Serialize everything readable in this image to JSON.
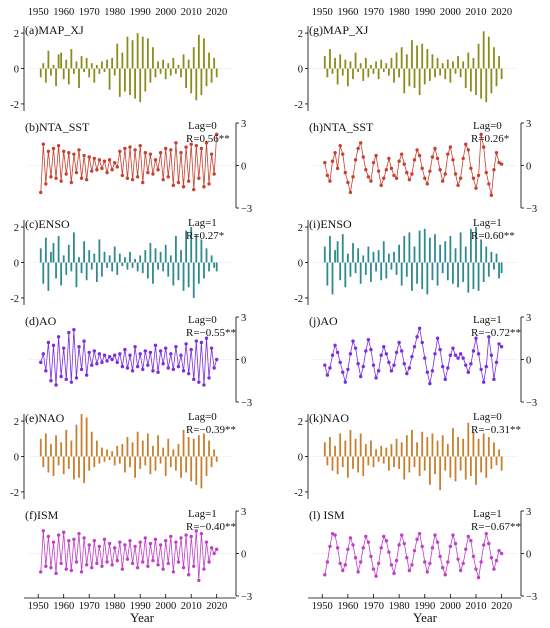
{
  "figure": {
    "x_ticks": [
      1950,
      1960,
      1970,
      1980,
      1990,
      2000,
      2010,
      2020
    ],
    "xlabel": "Year",
    "y_ticks_left": [
      "2",
      "0",
      "-2"
    ],
    "y_ticks_right": [
      "3",
      "0",
      "−3"
    ]
  },
  "chart_data": [
    {
      "id": "a",
      "label": "(a)MAP_XJ",
      "type": "bar",
      "color": "#8b8c1c",
      "axis": "left",
      "ylim": [
        -2.4,
        2.4
      ],
      "lag": "",
      "r": "",
      "x_start": 1951,
      "values": [
        -0.5,
        0.3,
        -0.8,
        1.0,
        -0.4,
        0.2,
        -1.0,
        0.8,
        0.9,
        -0.6,
        0.5,
        -0.9,
        1.1,
        -0.3,
        0.4,
        -1.1,
        0.7,
        -0.2,
        0.6,
        -0.5,
        0.3,
        -0.8,
        0.2,
        -0.3,
        0.4,
        -0.2,
        0.5,
        -1.2,
        0.6,
        -0.4,
        1.4,
        -1.6,
        0.9,
        -1.3,
        1.8,
        -1.5,
        1.6,
        -1.7,
        2.0,
        -1.9,
        1.8,
        -1.3,
        1.7,
        -0.8,
        1.2,
        -0.5,
        0.4,
        -0.3,
        0.5,
        -0.6,
        0.3,
        -0.4,
        0.6,
        -0.3,
        0.2,
        -0.5,
        0.8,
        -1.1,
        0.5,
        -1.4,
        1.2,
        -1.8,
        1.9,
        -1.5,
        1.7,
        -1.0,
        0.9,
        -0.8,
        0.6,
        -0.5
      ]
    },
    {
      "id": "b",
      "label": "(b)NTA_SST",
      "type": "line",
      "color": "#c84030",
      "axis": "right",
      "ylim": [
        -3,
        3
      ],
      "lag": "Lag=0",
      "r": "R=0.56**",
      "x_start": 1951,
      "values": [
        -1.9,
        1.5,
        -1.3,
        1.0,
        -0.8,
        1.2,
        -0.9,
        1.4,
        -1.1,
        1.0,
        -0.6,
        0.9,
        -1.2,
        0.8,
        -0.5,
        1.1,
        -0.9,
        0.7,
        -1.0,
        0.6,
        -0.4,
        0.5,
        -0.3,
        0.4,
        -0.2,
        0.3,
        -0.5,
        0.4,
        -0.3,
        0.2,
        -0.1,
        1.0,
        -0.7,
        1.2,
        -0.9,
        1.3,
        -1.0,
        1.1,
        -0.8,
        1.4,
        -1.2,
        0.9,
        -0.5,
        0.8,
        -0.6,
        0.4,
        -0.3,
        0.9,
        -1.0,
        1.2,
        -0.8,
        1.1,
        -1.4,
        1.6,
        -1.2,
        0.9,
        -1.5,
        1.3,
        -1.1,
        1.5,
        -1.7,
        1.4,
        -0.9,
        1.2,
        -1.5,
        1.6,
        -1.3,
        0.8,
        -0.6,
        2.2
      ]
    },
    {
      "id": "c",
      "label": "(c)ENSO",
      "type": "bar",
      "color": "#2e8a8e",
      "axis": "left",
      "ylim": [
        -2.4,
        2.4
      ],
      "lag": "Lag=1",
      "r": "R=0.27*",
      "x_start": 1951,
      "values": [
        0.8,
        -1.2,
        1.4,
        -1.6,
        0.6,
        1.1,
        -0.9,
        1.5,
        -1.3,
        0.4,
        -0.7,
        1.0,
        -0.5,
        1.7,
        -1.4,
        0.3,
        -0.6,
        1.2,
        -1.0,
        0.7,
        -0.4,
        0.5,
        -1.1,
        1.3,
        -0.8,
        0.6,
        -0.3,
        0.4,
        -0.5,
        0.9,
        -0.7,
        0.5,
        -0.2,
        0.3,
        -0.4,
        0.6,
        -0.3,
        0.2,
        -0.5,
        0.4,
        -0.6,
        0.7,
        -0.9,
        1.1,
        -1.2,
        0.8,
        -0.4,
        0.6,
        -0.5,
        1.0,
        -0.8,
        0.4,
        -1.3,
        1.5,
        -1.0,
        0.7,
        -1.6,
        1.8,
        -1.4,
        2.0,
        -2.0,
        1.6,
        -1.2,
        1.3,
        -0.9,
        0.8,
        -0.5,
        0.4,
        -0.3,
        -0.5
      ]
    },
    {
      "id": "d",
      "label": "(d)AO",
      "type": "line",
      "color": "#7b2ee0",
      "axis": "right",
      "ylim": [
        -3,
        3
      ],
      "lag": "Lag=0",
      "r": "R=−0.55**",
      "x_start": 1951,
      "values": [
        -0.2,
        0.4,
        -0.8,
        1.2,
        -1.5,
        1.0,
        -1.8,
        1.6,
        -1.2,
        0.8,
        -1.4,
        1.9,
        -1.6,
        2.1,
        -1.3,
        0.9,
        -0.7,
        1.3,
        -1.1,
        0.5,
        -0.4,
        0.6,
        -0.3,
        0.4,
        -0.2,
        0.3,
        -0.1,
        0.2,
        0.0,
        0.3,
        -0.2,
        0.4,
        -0.5,
        0.7,
        -0.6,
        0.3,
        -0.8,
        0.9,
        -0.5,
        0.4,
        -0.7,
        0.6,
        -0.4,
        0.5,
        -0.8,
        1.0,
        -0.9,
        0.6,
        -0.3,
        0.8,
        -0.6,
        0.4,
        -0.7,
        0.9,
        -0.5,
        0.3,
        -0.8,
        1.1,
        -1.0,
        0.7,
        -1.4,
        1.3,
        -1.6,
        1.2,
        -1.8,
        1.5,
        -1.3,
        0.8,
        -0.6,
        0.0
      ]
    },
    {
      "id": "e",
      "label": "(e)NAO",
      "type": "bar",
      "color": "#c8802e",
      "axis": "left",
      "ylim": [
        -2.4,
        2.4
      ],
      "lag": "Lag=0",
      "r": "R=−0.39**",
      "x_start": 1951,
      "values": [
        1.0,
        -0.6,
        1.3,
        -0.9,
        0.7,
        -1.1,
        1.2,
        -0.5,
        0.8,
        -1.0,
        1.5,
        -0.7,
        0.9,
        -1.3,
        1.8,
        -1.2,
        2.4,
        -1.5,
        2.2,
        -0.8,
        1.4,
        -0.6,
        0.9,
        -0.4,
        0.5,
        -0.3,
        0.4,
        -0.2,
        0.3,
        -0.5,
        0.6,
        -0.4,
        0.7,
        -0.9,
        1.1,
        -0.6,
        0.8,
        -1.2,
        1.4,
        -0.7,
        0.9,
        -0.5,
        1.3,
        -1.0,
        0.6,
        -0.8,
        1.2,
        -0.4,
        0.5,
        -1.1,
        1.0,
        -0.6,
        0.4,
        -0.8,
        0.7,
        -1.2,
        1.5,
        -0.9,
        1.1,
        -1.4,
        1.0,
        -1.6,
        1.2,
        -1.8,
        1.3,
        -1.1,
        0.9,
        -0.6,
        0.4,
        -0.3
      ]
    },
    {
      "id": "f",
      "label": "(f)ISM",
      "type": "line",
      "color": "#c040c8",
      "axis": "right",
      "ylim": [
        -3,
        3
      ],
      "lag": "Lag=1",
      "r": "R=−0.40**",
      "x_start": 1951,
      "values": [
        -1.3,
        1.6,
        -0.9,
        1.2,
        -1.0,
        0.8,
        -1.4,
        1.3,
        -0.7,
        1.5,
        -1.1,
        0.9,
        -1.2,
        1.0,
        -0.6,
        1.4,
        -1.3,
        1.1,
        -0.8,
        0.6,
        -1.0,
        0.9,
        -0.7,
        0.5,
        -0.9,
        1.0,
        -0.6,
        0.7,
        -0.8,
        0.4,
        -0.5,
        0.8,
        -1.1,
        0.6,
        -0.4,
        0.9,
        -0.7,
        0.5,
        -1.0,
        0.8,
        -0.6,
        1.1,
        -0.9,
        0.7,
        -0.5,
        1.0,
        -0.8,
        0.6,
        -1.1,
        0.9,
        -0.7,
        1.2,
        -1.3,
        0.8,
        -0.6,
        1.1,
        -1.0,
        1.3,
        -1.5,
        1.2,
        -0.9,
        1.6,
        -1.9,
        1.4,
        -1.1,
        0.8,
        -0.6,
        0.4,
        0.0,
        0.3
      ]
    },
    {
      "id": "g",
      "label": "(g)MAP_XJ",
      "type": "bar",
      "color": "#8b8c1c",
      "axis": "left",
      "ylim": [
        -2.4,
        2.4
      ],
      "lag": "",
      "r": "",
      "x_start": 1951,
      "values": [
        0.7,
        -0.5,
        1.1,
        -0.3,
        0.6,
        -0.9,
        0.8,
        -0.4,
        0.5,
        -1.0,
        0.4,
        -0.6,
        0.9,
        -0.2,
        0.3,
        -0.7,
        0.6,
        -0.5,
        0.2,
        -0.3,
        0.4,
        -0.6,
        0.5,
        -0.2,
        0.3,
        -0.4,
        0.6,
        -0.8,
        0.9,
        -0.5,
        1.2,
        -1.4,
        0.8,
        -1.0,
        1.6,
        -1.1,
        1.3,
        -1.5,
        1.4,
        -0.9,
        1.1,
        -0.7,
        0.8,
        -0.5,
        0.6,
        -0.4,
        0.3,
        -0.6,
        0.5,
        -0.8,
        0.4,
        -0.3,
        0.7,
        -0.5,
        0.4,
        -1.1,
        0.9,
        -1.3,
        0.6,
        -1.5,
        1.4,
        -1.7,
        2.1,
        -1.9,
        1.8,
        -1.4,
        1.2,
        -1.0,
        0.7,
        -0.6
      ]
    },
    {
      "id": "h",
      "label": "(h)NTA_SST",
      "type": "line",
      "color": "#c84030",
      "axis": "right",
      "ylim": [
        -3,
        3
      ],
      "lag": "Lag=0",
      "r": "R=0.26*",
      "x_start": 1951,
      "values": [
        0.2,
        -0.7,
        -1.1,
        0.3,
        0.9,
        -0.2,
        1.4,
        0.8,
        -0.5,
        -1.2,
        -1.9,
        -0.8,
        0.4,
        1.2,
        1.6,
        0.6,
        -0.3,
        -0.8,
        -1.1,
        0.2,
        0.7,
        -0.4,
        -1.4,
        -0.9,
        -0.3,
        0.5,
        -0.2,
        -0.7,
        -0.9,
        0.3,
        0.8,
        0.1,
        -0.5,
        -1.0,
        -0.6,
        0.4,
        1.1,
        0.7,
        -0.2,
        -0.9,
        -1.3,
        -0.4,
        0.6,
        1.2,
        0.5,
        -0.3,
        -1.1,
        -0.6,
        0.8,
        1.3,
        0.4,
        -0.6,
        -1.4,
        -0.9,
        0.5,
        1.5,
        1.1,
        -0.2,
        -0.9,
        -1.6,
        -0.7,
        2.2,
        1.3,
        -0.5,
        -1.3,
        -2.1,
        -0.3,
        0.9,
        0.2,
        0.1
      ]
    },
    {
      "id": "i",
      "label": "(i)ENSO",
      "type": "bar",
      "color": "#2e8a8e",
      "axis": "left",
      "ylim": [
        -2.4,
        2.4
      ],
      "lag": "Lag=1",
      "r": "R=0.60**",
      "x_start": 1951,
      "values": [
        0.9,
        -1.3,
        1.5,
        -1.8,
        0.7,
        1.2,
        -1.0,
        1.6,
        -1.4,
        0.5,
        -0.8,
        1.1,
        -0.6,
        0.8,
        -1.2,
        0.4,
        -0.7,
        0.9,
        -1.1,
        0.6,
        -0.5,
        0.7,
        -1.0,
        1.2,
        -0.9,
        0.5,
        -0.4,
        0.6,
        -0.7,
        1.0,
        -1.3,
        1.5,
        -0.8,
        1.7,
        -1.6,
        0.9,
        -1.2,
        1.8,
        -1.5,
        1.9,
        -1.8,
        1.4,
        -1.0,
        1.6,
        -1.3,
        1.0,
        -0.6,
        1.2,
        -1.0,
        1.5,
        -1.2,
        0.8,
        -1.4,
        1.7,
        -1.1,
        0.9,
        -1.7,
        1.9,
        -1.5,
        2.0,
        -1.6,
        1.3,
        -1.1,
        0.9,
        -0.8,
        0.6,
        -0.4,
        0.5,
        -0.9,
        -0.6
      ]
    },
    {
      "id": "j",
      "label": "(j)AO",
      "type": "line",
      "color": "#7b2ee0",
      "axis": "right",
      "ylim": [
        -3,
        3
      ],
      "lag": "Lag=1",
      "r": "R=−0.72**",
      "x_start": 1951,
      "values": [
        -0.4,
        -1.1,
        -0.6,
        0.3,
        1.0,
        0.5,
        -0.2,
        -0.9,
        -1.6,
        -0.7,
        0.4,
        1.3,
        0.8,
        -0.3,
        -1.2,
        -0.5,
        0.6,
        1.4,
        0.7,
        -0.4,
        -1.3,
        -0.8,
        0.3,
        0.9,
        0.4,
        -0.2,
        -0.8,
        -0.4,
        0.5,
        1.2,
        0.6,
        -0.3,
        -1.0,
        -0.6,
        0.2,
        0.9,
        1.6,
        2.2,
        1.2,
        0.1,
        -0.9,
        -1.7,
        -0.8,
        0.4,
        1.5,
        0.7,
        -0.5,
        -1.4,
        -0.6,
        0.3,
        0.8,
        0.3,
        0.1,
        0.4,
        0.1,
        -0.4,
        -0.9,
        -0.3,
        0.6,
        1.5,
        0.4,
        -0.7,
        -1.6,
        -0.5,
        1.6,
        0.3,
        -1.4,
        -0.2,
        1.1,
        0.9
      ]
    },
    {
      "id": "k",
      "label": "(k)NAO",
      "type": "bar",
      "color": "#c8802e",
      "axis": "left",
      "ylim": [
        -2.4,
        2.4
      ],
      "lag": "Lag=0",
      "r": "R=−0.31**",
      "x_start": 1951,
      "values": [
        0.8,
        -0.5,
        1.1,
        -0.8,
        0.6,
        -1.0,
        1.3,
        -0.6,
        0.9,
        -1.2,
        1.5,
        -0.7,
        1.0,
        -0.9,
        1.3,
        -1.1,
        0.7,
        -0.5,
        0.9,
        -0.6,
        0.4,
        -0.3,
        0.6,
        -0.4,
        0.5,
        -0.8,
        0.7,
        -0.6,
        1.0,
        -0.7,
        0.8,
        -1.3,
        1.2,
        -0.9,
        1.5,
        -0.6,
        0.8,
        -1.1,
        1.4,
        -0.8,
        1.1,
        -1.6,
        1.3,
        -1.0,
        0.9,
        -1.9,
        1.2,
        -0.8,
        0.7,
        -1.2,
        1.6,
        -1.4,
        1.1,
        -0.8,
        1.0,
        -1.3,
        1.9,
        -1.1,
        1.4,
        -1.6,
        1.0,
        -0.9,
        1.3,
        -1.2,
        1.1,
        -0.7,
        0.8,
        -0.5,
        0.4,
        -0.8
      ]
    },
    {
      "id": "l",
      "label": "(l) ISM",
      "type": "line",
      "color": "#c040c8",
      "axis": "right",
      "ylim": [
        -3,
        3
      ],
      "lag": "Lag=1",
      "r": "R=−0.67**",
      "x_start": 1951,
      "values": [
        -1.5,
        -0.6,
        0.5,
        1.4,
        1.3,
        0.4,
        -0.7,
        -1.2,
        -0.8,
        0.3,
        1.1,
        0.6,
        -0.3,
        -1.3,
        -0.6,
        0.4,
        1.2,
        0.8,
        -0.2,
        -1.1,
        -1.6,
        -0.7,
        0.4,
        1.2,
        0.9,
        0.1,
        -0.8,
        -1.4,
        -0.5,
        0.6,
        1.3,
        0.7,
        -0.3,
        -1.2,
        -0.8,
        0.2,
        1.0,
        1.4,
        0.5,
        -0.6,
        -1.3,
        -0.7,
        0.4,
        1.3,
        0.8,
        -0.2,
        -1.0,
        -1.5,
        -0.6,
        0.5,
        1.3,
        0.7,
        -0.4,
        -1.2,
        -0.7,
        0.3,
        1.2,
        0.9,
        -0.2,
        -1.1,
        -1.7,
        -0.6,
        0.6,
        1.4,
        0.7,
        -0.3,
        -1.1,
        -0.5,
        0.2,
        0.0
      ]
    }
  ]
}
